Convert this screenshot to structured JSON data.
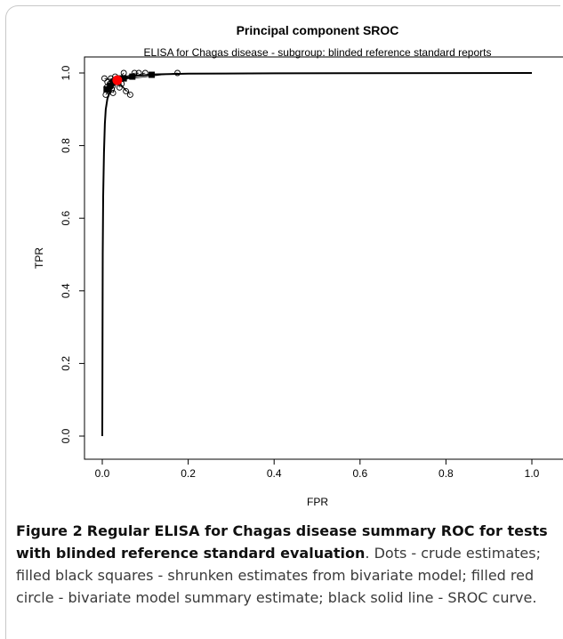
{
  "chart_data": {
    "type": "scatter",
    "title": "Principal component SROC",
    "subtitle": "ELISA for Chagas disease - subgroup: blinded reference standard reports",
    "xlabel": "FPR",
    "ylabel": "TPR",
    "xlim": [
      0,
      1
    ],
    "ylim": [
      0,
      1
    ],
    "xticks": [
      "0.0",
      "0.2",
      "0.4",
      "0.6",
      "0.8",
      "1.0"
    ],
    "yticks": [
      "0.0",
      "0.2",
      "0.4",
      "0.6",
      "0.8",
      "1.0"
    ],
    "grid": false,
    "legend": "none",
    "crude_estimates": [
      {
        "fpr": 0.005,
        "tpr": 0.985
      },
      {
        "fpr": 0.008,
        "tpr": 0.94
      },
      {
        "fpr": 0.01,
        "tpr": 0.96
      },
      {
        "fpr": 0.012,
        "tpr": 0.975
      },
      {
        "fpr": 0.015,
        "tpr": 0.95
      },
      {
        "fpr": 0.018,
        "tpr": 0.97
      },
      {
        "fpr": 0.02,
        "tpr": 0.985
      },
      {
        "fpr": 0.022,
        "tpr": 0.955
      },
      {
        "fpr": 0.025,
        "tpr": 0.945
      },
      {
        "fpr": 0.028,
        "tpr": 0.98
      },
      {
        "fpr": 0.03,
        "tpr": 0.99
      },
      {
        "fpr": 0.035,
        "tpr": 0.975
      },
      {
        "fpr": 0.04,
        "tpr": 0.96
      },
      {
        "fpr": 0.045,
        "tpr": 0.97
      },
      {
        "fpr": 0.05,
        "tpr": 1.0
      },
      {
        "fpr": 0.055,
        "tpr": 0.95
      },
      {
        "fpr": 0.065,
        "tpr": 0.94
      },
      {
        "fpr": 0.075,
        "tpr": 1.0
      },
      {
        "fpr": 0.085,
        "tpr": 1.0
      },
      {
        "fpr": 0.1,
        "tpr": 1.0
      },
      {
        "fpr": 0.175,
        "tpr": 1.0
      }
    ],
    "shrunken_estimates": [
      {
        "fpr": 0.01,
        "tpr": 0.955
      },
      {
        "fpr": 0.018,
        "tpr": 0.965
      },
      {
        "fpr": 0.025,
        "tpr": 0.975
      },
      {
        "fpr": 0.04,
        "tpr": 0.985
      },
      {
        "fpr": 0.05,
        "tpr": 0.985
      },
      {
        "fpr": 0.07,
        "tpr": 0.99
      },
      {
        "fpr": 0.115,
        "tpr": 0.995
      }
    ],
    "summary_estimate": {
      "fpr": 0.035,
      "tpr": 0.98
    },
    "sroc_curve": [
      [
        0.0,
        0.0
      ],
      [
        0.001,
        0.5
      ],
      [
        0.002,
        0.66
      ],
      [
        0.004,
        0.78
      ],
      [
        0.006,
        0.86
      ],
      [
        0.008,
        0.9
      ],
      [
        0.012,
        0.93
      ],
      [
        0.02,
        0.955
      ],
      [
        0.03,
        0.972
      ],
      [
        0.05,
        0.985
      ],
      [
        0.08,
        0.992
      ],
      [
        0.12,
        0.996
      ],
      [
        0.2,
        0.998
      ],
      [
        0.4,
        0.999
      ],
      [
        1.0,
        1.0
      ]
    ],
    "colors": {
      "summary": "#ff0000",
      "marks": "#000000"
    }
  },
  "caption": {
    "label": "Figure 2",
    "title": "Regular ELISA for Chagas disease summary ROC for tests with blinded reference standard evaluation",
    "text": ". Dots - crude estimates; filled black squares - shrunken estimates from bivariate model; filled red circle - bivariate model summary estimate; black solid line - SROC curve."
  }
}
